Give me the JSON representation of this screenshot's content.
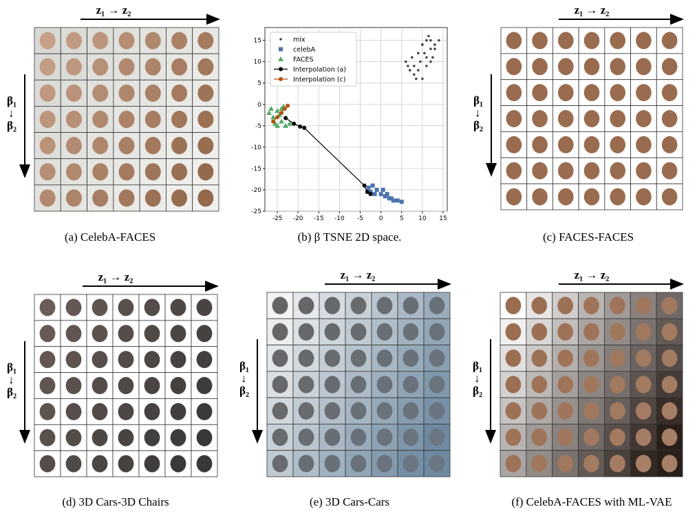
{
  "panels": [
    {
      "caption": "(a) CelebA-FACES",
      "top_label": "z₁ → z₂",
      "side_top": "β₁",
      "side_mid": "↓",
      "side_bottom": "β₂"
    },
    {
      "caption": "(c) FACES-FACES",
      "top_label": "z₁ → z₂",
      "side_top": "β₁",
      "side_mid": "↓",
      "side_bottom": "β₂"
    },
    {
      "caption": "(d) 3D Cars-3D Chairs",
      "top_label": "z₁ → z₂",
      "side_top": "β₁",
      "side_mid": "↓",
      "side_bottom": "β₂"
    },
    {
      "caption": "(e) 3D Cars-Cars",
      "top_label": "z₁ → z₂",
      "side_top": "β₁",
      "side_mid": "↓",
      "side_bottom": "β₂"
    },
    {
      "caption": "(f) CelebA-FACES with ML-VAE",
      "top_label": "z₁ → z₂",
      "side_top": "β₁",
      "side_mid": "↓",
      "side_bottom": "β₂"
    }
  ],
  "chart_data": {
    "type": "scatter",
    "caption": "(b) β TSNE 2D space.",
    "xlim": [
      -28,
      16
    ],
    "ylim": [
      -25,
      18
    ],
    "xticks": [
      -25,
      -20,
      -15,
      -10,
      -5,
      0,
      5,
      10,
      15
    ],
    "yticks": [
      -25,
      -20,
      -15,
      -10,
      -5,
      0,
      5,
      10,
      15
    ],
    "grid": true,
    "legend": "upper-left",
    "series": [
      {
        "name": "mix",
        "color": "#444444",
        "marker": "dot",
        "x": [
          6,
          7,
          8,
          9,
          10,
          11,
          12,
          13,
          14,
          7.5,
          8.5,
          9.5,
          10.5,
          11.5,
          12.5,
          6.5,
          9,
          10,
          11,
          12,
          13,
          8,
          10,
          12,
          11
        ],
        "values": [
          10,
          8,
          7,
          12,
          14,
          9,
          15,
          13,
          15,
          11,
          6,
          10,
          12,
          16,
          11,
          9,
          8,
          14,
          11,
          13,
          14,
          9,
          6,
          10,
          15
        ]
      },
      {
        "name": "celebA",
        "color": "#4c72b0",
        "marker": "square",
        "x": [
          -3,
          -2,
          -1,
          0,
          1,
          2,
          3,
          4,
          5,
          -2.5,
          -1.5,
          0.5,
          1.5,
          2.5
        ],
        "values": [
          -19.5,
          -19,
          -20,
          -21,
          -21.5,
          -22,
          -22.5,
          -22.5,
          -22.8,
          -20.5,
          -21,
          -20,
          -21,
          -22
        ]
      },
      {
        "name": "FACES",
        "color": "#55a868",
        "marker": "triangle",
        "x": [
          -27,
          -26,
          -25,
          -24,
          -23,
          -22,
          -26.5,
          -25.5,
          -24.5,
          -23.5,
          -25,
          -24
        ],
        "values": [
          -2,
          -3,
          -1.5,
          -4,
          -5,
          -4.5,
          -1,
          -4.5,
          -2.5,
          -0.5,
          -5,
          -1
        ]
      },
      {
        "name": "Interpolation (a)",
        "color": "#000000",
        "marker": "line",
        "x": [
          -23,
          -21,
          -19.5,
          -18.5,
          -4,
          -3.3,
          -2.5
        ],
        "values": [
          -3.2,
          -4.5,
          -5.2,
          -5.5,
          -19,
          -20.5,
          -21
        ]
      },
      {
        "name": "Interpolation (c)",
        "color": "#b5500f",
        "marker": "line",
        "x": [
          -26,
          -25,
          -24,
          -23.2,
          -22.5
        ],
        "values": [
          -4,
          -3,
          -2,
          -1,
          -0.3
        ]
      }
    ]
  }
}
